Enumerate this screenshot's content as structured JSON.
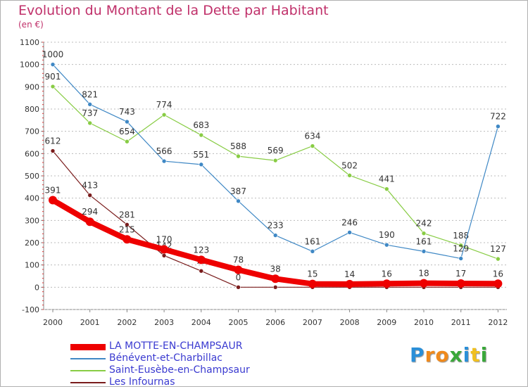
{
  "chart_data": {
    "type": "line",
    "title": "Evolution du Montant de la Dette par Habitant",
    "subtitle": "(en €)",
    "x": [
      "2000",
      "2001",
      "2002",
      "2003",
      "2004",
      "2005",
      "2006",
      "2007",
      "2008",
      "2009",
      "2010",
      "2011",
      "2012"
    ],
    "ylim": [
      -100,
      1100
    ],
    "yticks": [
      -100,
      0,
      100,
      200,
      300,
      400,
      500,
      600,
      700,
      800,
      900,
      1000,
      1100
    ],
    "ytick_labels": [
      "-100",
      "0",
      "100",
      "200",
      "300",
      "400",
      "500",
      "600",
      "700",
      "800",
      "900",
      "1000",
      "1100"
    ],
    "grid": "horizontal dotted",
    "legend_position": "bottom",
    "series": [
      {
        "name": "Les Infournas",
        "color": "#7a1c1c",
        "values": [
          612,
          413,
          281,
          142,
          73,
          0,
          0,
          0,
          0,
          0,
          0,
          0,
          0
        ],
        "labels": [
          "612",
          "413",
          "281",
          "142",
          "73",
          "0",
          "",
          "",
          "",
          "",
          "",
          "",
          ""
        ]
      },
      {
        "name": "Saint-Eusèbe-en-Champsaur",
        "color": "#88cc44",
        "values": [
          901,
          737,
          654,
          774,
          683,
          588,
          569,
          634,
          502,
          441,
          242,
          188,
          127
        ],
        "labels": [
          "901",
          "737",
          "654",
          "774",
          "683",
          "588",
          "569",
          "634",
          "502",
          "441",
          "242",
          "188",
          "127"
        ]
      },
      {
        "name": "Bénévent-et-Charbillac",
        "color": "#3f88c5",
        "values": [
          1000,
          821,
          743,
          566,
          551,
          387,
          233,
          161,
          246,
          190,
          161,
          129,
          722
        ],
        "labels": [
          "1000",
          "821",
          "743",
          "566",
          "551",
          "387",
          "233",
          "161",
          "246",
          "190",
          "161",
          "129",
          "722"
        ]
      },
      {
        "name": "LA MOTTE-EN-CHAMPSAUR",
        "color": "#ee0000",
        "values": [
          391,
          294,
          215,
          170,
          123,
          78,
          38,
          15,
          14,
          16,
          18,
          17,
          16
        ],
        "labels": [
          "391",
          "294",
          "215",
          "170",
          "123",
          "78",
          "38",
          "15",
          "14",
          "16",
          "18",
          "17",
          "16"
        ]
      }
    ]
  },
  "legend": [
    {
      "label": "LA MOTTE-EN-CHAMPSAUR",
      "color": "#ee0000",
      "text_color": "#3a3ad0"
    },
    {
      "label": "Bénévent-et-Charbillac",
      "color": "#3f88c5",
      "text_color": "#3a3ad0"
    },
    {
      "label": "Saint-Eusèbe-en-Champsaur",
      "color": "#88cc44",
      "text_color": "#3a3ad0"
    },
    {
      "label": "Les Infournas",
      "color": "#7a1c1c",
      "text_color": "#3a3ad0"
    }
  ],
  "logo": {
    "text": "Proxiti"
  }
}
